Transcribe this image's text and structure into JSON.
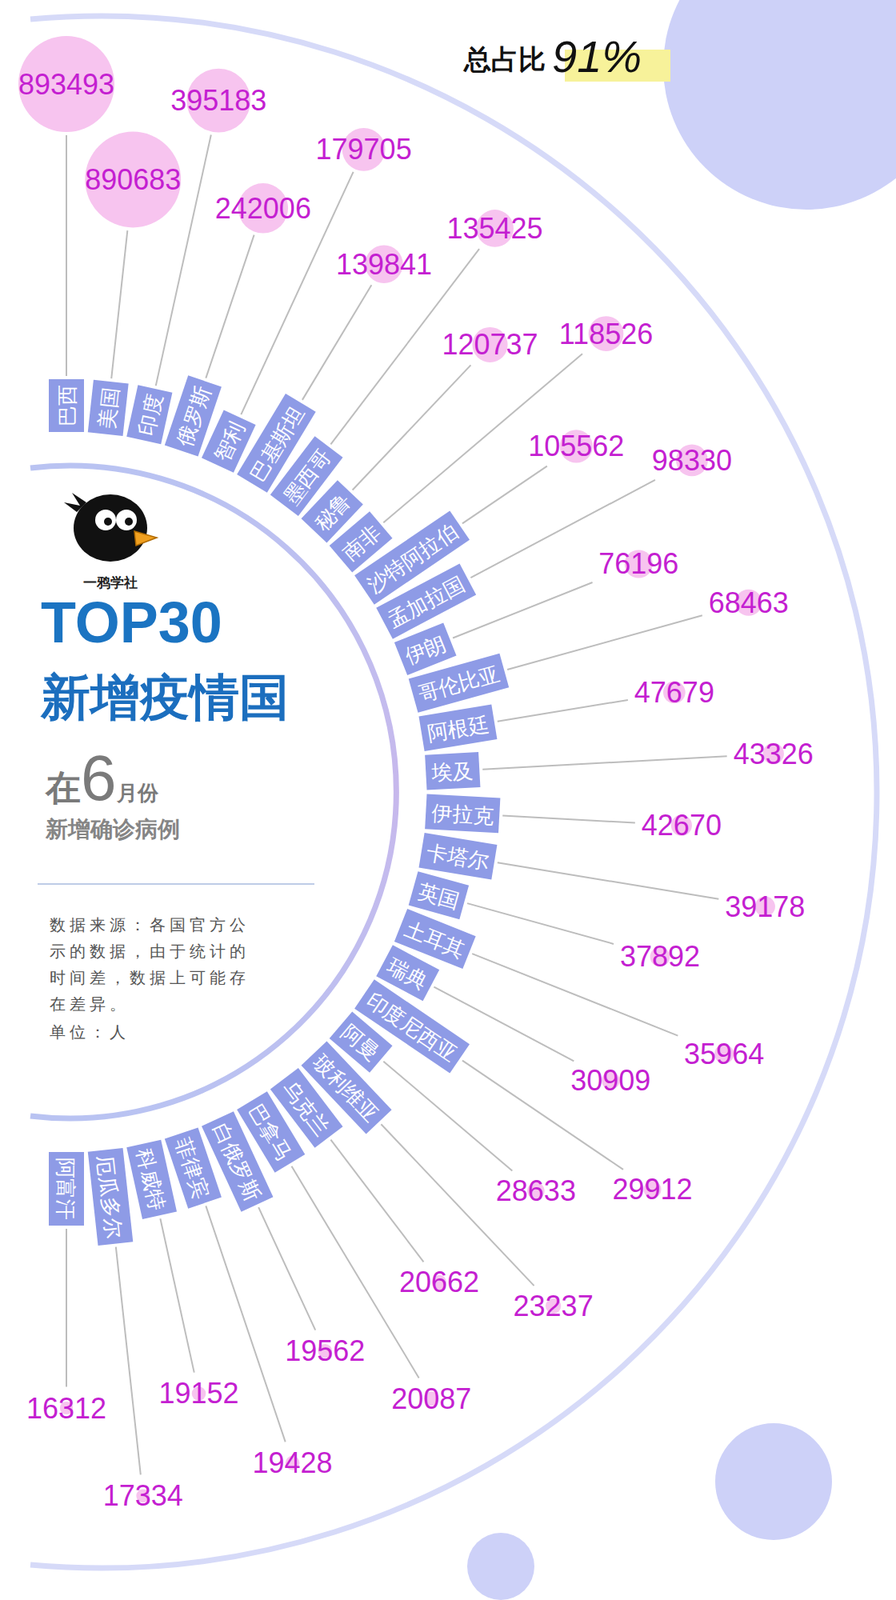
{
  "chart_data": {
    "type": "radial_bubble",
    "title": "TOP30",
    "subtitle": "新增疫情国",
    "brand": "一鸦学社",
    "period_prefix": "在",
    "period_month": "6",
    "period_suffix": "月份",
    "measure": "新增确诊病例",
    "source": "数据来源：各国官方公示的数据，由于统计的时间差，数据上可能存在差异。",
    "unit": "单位：人",
    "total_label": "总占比",
    "total_value": "91%",
    "categories": [
      "巴西",
      "美国",
      "印度",
      "俄罗斯",
      "智利",
      "巴基斯坦",
      "墨西哥",
      "秘鲁",
      "南非",
      "沙特阿拉伯",
      "孟加拉国",
      "伊朗",
      "哥伦比亚",
      "阿根廷",
      "埃及",
      "伊拉克",
      "卡塔尔",
      "英国",
      "土耳其",
      "瑞典",
      "印度尼西亚",
      "阿曼",
      "玻利维亚",
      "乌克兰",
      "巴拿马",
      "白俄罗斯",
      "菲律宾",
      "科威特",
      "厄瓜多尔",
      "阿富汗"
    ],
    "values": [
      893493,
      890683,
      395183,
      242006,
      179705,
      139841,
      135425,
      120737,
      118526,
      105562,
      98330,
      76196,
      68463,
      47679,
      43326,
      42670,
      39178,
      37892,
      35964,
      30909,
      29912,
      28633,
      23237,
      20662,
      20087,
      19562,
      19428,
      19152,
      17334,
      16312
    ],
    "color": "#f7c4ef",
    "data_labels": true
  }
}
